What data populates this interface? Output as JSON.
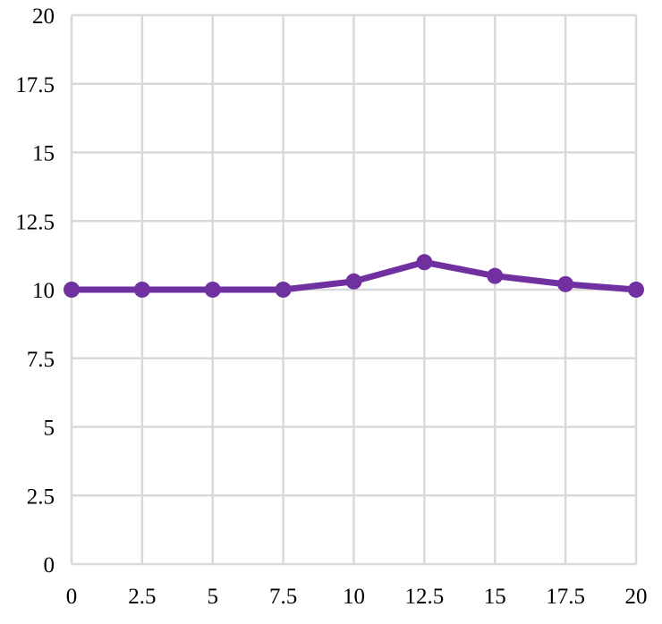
{
  "chart_data": {
    "type": "line",
    "title": "",
    "xlabel": "",
    "ylabel": "",
    "x": [
      0,
      2.5,
      5,
      7.5,
      10,
      12.5,
      15,
      17.5,
      20
    ],
    "xlim": [
      0,
      20
    ],
    "ylim": [
      0,
      20
    ],
    "xticks": [
      0,
      2.5,
      5,
      7.5,
      10,
      12.5,
      15,
      17.5,
      20
    ],
    "yticks": [
      0,
      2.5,
      5,
      7.5,
      10,
      12.5,
      15,
      17.5,
      20
    ],
    "xtick_labels": [
      "0",
      "2.5",
      "5",
      "7.5",
      "10",
      "12.5",
      "15",
      "17.5",
      "20"
    ],
    "ytick_labels": [
      "0",
      "2.5",
      "5",
      "7.5",
      "10",
      "12.5",
      "15",
      "17.5",
      "20"
    ],
    "grid": true,
    "legend": "none",
    "series": [
      {
        "values": [
          10,
          10,
          10,
          10,
          10.3,
          11,
          10.5,
          10.2,
          10
        ],
        "color": "#7030a0",
        "marker": "circle"
      }
    ],
    "grid_color": "#d9d9d9"
  }
}
